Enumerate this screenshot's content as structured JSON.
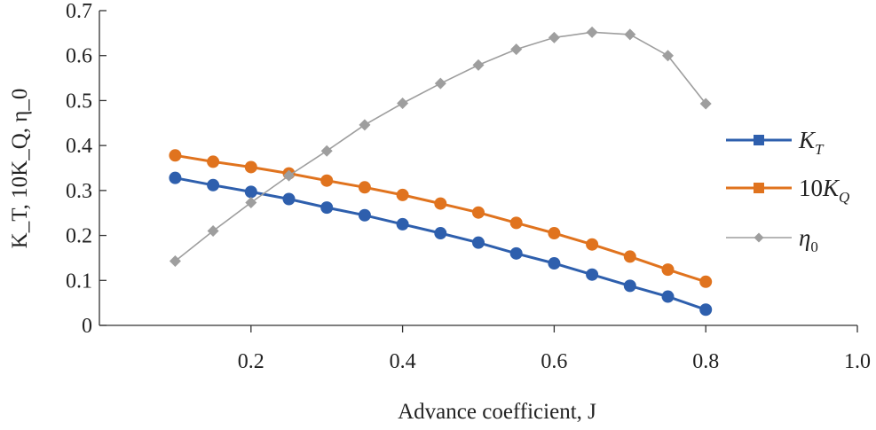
{
  "chart_data": {
    "type": "line",
    "title": "",
    "xlabel": "Advance coefficient, J",
    "ylabel": "K_T, 10K_Q, η_0",
    "xlim": [
      0,
      1.0
    ],
    "ylim": [
      0,
      0.7
    ],
    "xticks": [
      0.2,
      0.4,
      0.6,
      0.8,
      1.0
    ],
    "yticks": [
      0,
      0.1,
      0.2,
      0.3,
      0.4,
      0.5,
      0.6,
      0.7
    ],
    "xtick_labels": [
      "0.2",
      "0.4",
      "0.6",
      "0.8",
      "1.0"
    ],
    "ytick_labels": [
      "0",
      "0.1",
      "0.2",
      "0.3",
      "0.4",
      "0.5",
      "0.6",
      "0.7"
    ],
    "grid": false,
    "legend_position": "right",
    "x": [
      0.1,
      0.15,
      0.2,
      0.25,
      0.3,
      0.35,
      0.4,
      0.45,
      0.5,
      0.55,
      0.6,
      0.65,
      0.7,
      0.75,
      0.8
    ],
    "series": [
      {
        "name": "K_T",
        "legend_main": "K",
        "legend_sub": "T",
        "color": "#2e5fad",
        "marker": "circle",
        "values": [
          0.328,
          0.312,
          0.297,
          0.281,
          0.262,
          0.245,
          0.225,
          0.205,
          0.184,
          0.16,
          0.138,
          0.113,
          0.088,
          0.064,
          0.035
        ]
      },
      {
        "name": "10K_Q",
        "legend_main": "10K",
        "legend_sub": "Q",
        "color": "#e0731e",
        "marker": "circle",
        "values": [
          0.378,
          0.364,
          0.352,
          0.338,
          0.322,
          0.307,
          0.29,
          0.271,
          0.251,
          0.228,
          0.205,
          0.18,
          0.153,
          0.124,
          0.097
        ]
      },
      {
        "name": "η_0",
        "legend_main": "η",
        "legend_sub": "0",
        "color": "#9e9e9e",
        "marker": "diamond",
        "values": [
          0.143,
          0.21,
          0.273,
          0.333,
          0.388,
          0.446,
          0.494,
          0.538,
          0.579,
          0.614,
          0.64,
          0.652,
          0.647,
          0.6,
          0.493
        ]
      }
    ]
  }
}
